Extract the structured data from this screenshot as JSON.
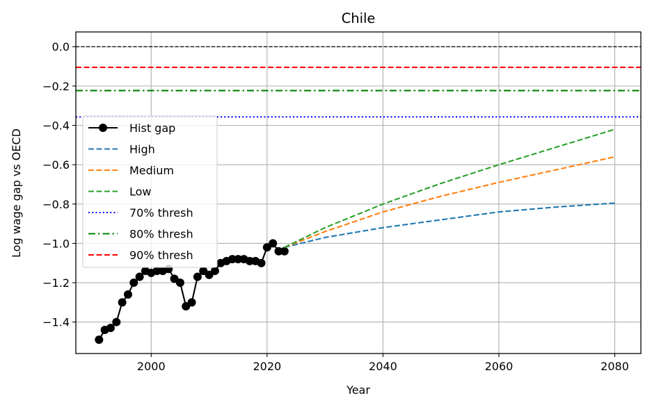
{
  "chart_data": {
    "type": "line",
    "title": "Chile",
    "xlabel": "Year",
    "ylabel": "Log wage gap vs OECD",
    "xlim": [
      1987,
      2084.5
    ],
    "ylim": [
      -1.56,
      0.075
    ],
    "xticks": [
      2000,
      2020,
      2040,
      2060,
      2080
    ],
    "yticks": [
      0.0,
      -0.2,
      -0.4,
      -0.6,
      -0.8,
      -1.0,
      -1.2,
      -1.4
    ],
    "ytick_labels": [
      "0.0",
      "−0.2",
      "−0.4",
      "−0.6",
      "−0.8",
      "−1.0",
      "−1.2",
      "−1.4"
    ],
    "grid": true,
    "legend_position": "center-left",
    "reference_lines": [
      {
        "y": 0.0,
        "color": "#000000",
        "style": "dashed",
        "in_legend": false
      },
      {
        "name": "90% thresh",
        "y": -0.105,
        "color": "#ff0000",
        "style": "dashed"
      },
      {
        "name": "80% thresh",
        "y": -0.223,
        "color": "#008000",
        "style": "dashdot"
      },
      {
        "name": "70% thresh",
        "y": -0.357,
        "color": "#0000ff",
        "style": "dotted"
      }
    ],
    "series": [
      {
        "name": "Hist gap",
        "color": "#000000",
        "style": "solid-marker",
        "x": [
          1991,
          1992,
          1993,
          1994,
          1995,
          1996,
          1997,
          1998,
          1999,
          2000,
          2001,
          2002,
          2003,
          2004,
          2005,
          2006,
          2007,
          2008,
          2009,
          2010,
          2011,
          2012,
          2013,
          2014,
          2015,
          2016,
          2017,
          2018,
          2019,
          2020,
          2021,
          2022,
          2023
        ],
        "y": [
          -1.49,
          -1.44,
          -1.43,
          -1.4,
          -1.3,
          -1.26,
          -1.2,
          -1.17,
          -1.14,
          -1.15,
          -1.14,
          -1.14,
          -1.13,
          -1.18,
          -1.2,
          -1.32,
          -1.3,
          -1.17,
          -1.14,
          -1.16,
          -1.14,
          -1.1,
          -1.09,
          -1.08,
          -1.08,
          -1.08,
          -1.09,
          -1.09,
          -1.1,
          -1.02,
          -1.0,
          -1.04,
          -1.04
        ]
      },
      {
        "name": "High",
        "color": "#1f77b4",
        "style": "dashed",
        "x": [
          2023,
          2030,
          2040,
          2050,
          2060,
          2070,
          2080
        ],
        "y": [
          -1.02,
          -0.97,
          -0.92,
          -0.88,
          -0.84,
          -0.815,
          -0.795
        ]
      },
      {
        "name": "Medium",
        "color": "#ff7f0e",
        "style": "dashed",
        "x": [
          2023,
          2030,
          2040,
          2050,
          2060,
          2070,
          2080
        ],
        "y": [
          -1.02,
          -0.94,
          -0.84,
          -0.76,
          -0.69,
          -0.625,
          -0.56
        ]
      },
      {
        "name": "Low",
        "color": "#2ca02c",
        "style": "dashed",
        "x": [
          2023,
          2030,
          2040,
          2050,
          2060,
          2070,
          2080
        ],
        "y": [
          -1.02,
          -0.92,
          -0.8,
          -0.695,
          -0.6,
          -0.51,
          -0.42
        ]
      }
    ],
    "legend": [
      "Hist gap",
      "High",
      "Medium",
      "Low",
      "70% thresh",
      "80% thresh",
      "90% thresh"
    ]
  }
}
